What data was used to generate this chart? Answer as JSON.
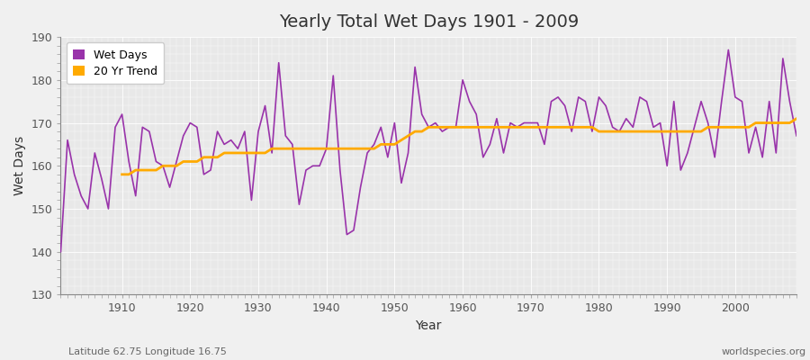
{
  "title": "Yearly Total Wet Days 1901 - 2009",
  "xlabel": "Year",
  "ylabel": "Wet Days",
  "footnote_left": "Latitude 62.75 Longitude 16.75",
  "footnote_right": "worldspecies.org",
  "ylim": [
    130,
    190
  ],
  "yticks": [
    130,
    140,
    150,
    160,
    170,
    180,
    190
  ],
  "fig_bg_color": "#f0f0f0",
  "plot_bg_color": "#e8e8e8",
  "wet_days_color": "#9933aa",
  "trend_color": "#ffaa00",
  "years": [
    1901,
    1902,
    1903,
    1904,
    1905,
    1906,
    1907,
    1908,
    1909,
    1910,
    1911,
    1912,
    1913,
    1914,
    1915,
    1916,
    1917,
    1918,
    1919,
    1920,
    1921,
    1922,
    1923,
    1924,
    1925,
    1926,
    1927,
    1928,
    1929,
    1930,
    1931,
    1932,
    1933,
    1934,
    1935,
    1936,
    1937,
    1938,
    1939,
    1940,
    1941,
    1942,
    1943,
    1944,
    1945,
    1946,
    1947,
    1948,
    1949,
    1950,
    1951,
    1952,
    1953,
    1954,
    1955,
    1956,
    1957,
    1958,
    1959,
    1960,
    1961,
    1962,
    1963,
    1964,
    1965,
    1966,
    1967,
    1968,
    1969,
    1970,
    1971,
    1972,
    1973,
    1974,
    1975,
    1976,
    1977,
    1978,
    1979,
    1980,
    1981,
    1982,
    1983,
    1984,
    1985,
    1986,
    1987,
    1988,
    1989,
    1990,
    1991,
    1992,
    1993,
    1994,
    1995,
    1996,
    1997,
    1998,
    1999,
    2000,
    2001,
    2002,
    2003,
    2004,
    2005,
    2006,
    2007,
    2008,
    2009
  ],
  "wet_days": [
    140,
    166,
    158,
    153,
    150,
    163,
    157,
    150,
    169,
    172,
    161,
    153,
    169,
    168,
    161,
    160,
    155,
    161,
    167,
    170,
    169,
    158,
    159,
    168,
    165,
    166,
    164,
    168,
    152,
    168,
    174,
    163,
    184,
    167,
    165,
    151,
    159,
    160,
    160,
    164,
    181,
    159,
    144,
    145,
    155,
    163,
    165,
    169,
    162,
    170,
    156,
    163,
    183,
    172,
    169,
    170,
    168,
    169,
    169,
    180,
    175,
    172,
    162,
    165,
    171,
    163,
    170,
    169,
    170,
    170,
    170,
    165,
    175,
    176,
    174,
    168,
    176,
    175,
    168,
    176,
    174,
    169,
    168,
    171,
    169,
    176,
    175,
    169,
    170,
    160,
    175,
    159,
    163,
    169,
    175,
    170,
    162,
    175,
    187,
    176,
    175,
    163,
    169,
    162,
    175,
    163,
    185,
    175,
    167
  ],
  "trend_years": [
    1910,
    1911,
    1912,
    1913,
    1914,
    1915,
    1916,
    1917,
    1918,
    1919,
    1920,
    1921,
    1922,
    1923,
    1924,
    1925,
    1926,
    1927,
    1928,
    1929,
    1930,
    1931,
    1932,
    1933,
    1934,
    1935,
    1936,
    1937,
    1938,
    1939,
    1940,
    1941,
    1942,
    1943,
    1944,
    1945,
    1946,
    1947,
    1948,
    1949,
    1950,
    1951,
    1952,
    1953,
    1954,
    1955,
    1956,
    1957,
    1958,
    1959,
    1960,
    1961,
    1962,
    1963,
    1964,
    1965,
    1966,
    1967,
    1968,
    1969,
    1970,
    1971,
    1972,
    1973,
    1974,
    1975,
    1976,
    1977,
    1978,
    1979,
    1980,
    1981,
    1982,
    1983,
    1984,
    1985,
    1986,
    1987,
    1988,
    1989,
    1990,
    1991,
    1992,
    1993,
    1994,
    1995,
    1996,
    1997,
    1998,
    1999,
    2000,
    2001,
    2002,
    2003,
    2004,
    2005,
    2006,
    2007,
    2008,
    2009
  ],
  "trend_values": [
    158,
    158,
    159,
    159,
    159,
    159,
    160,
    160,
    160,
    161,
    161,
    161,
    162,
    162,
    162,
    163,
    163,
    163,
    163,
    163,
    163,
    163,
    164,
    164,
    164,
    164,
    164,
    164,
    164,
    164,
    164,
    164,
    164,
    164,
    164,
    164,
    164,
    164,
    165,
    165,
    165,
    166,
    167,
    168,
    168,
    169,
    169,
    169,
    169,
    169,
    169,
    169,
    169,
    169,
    169,
    169,
    169,
    169,
    169,
    169,
    169,
    169,
    169,
    169,
    169,
    169,
    169,
    169,
    169,
    169,
    168,
    168,
    168,
    168,
    168,
    168,
    168,
    168,
    168,
    168,
    168,
    168,
    168,
    168,
    168,
    168,
    169,
    169,
    169,
    169,
    169,
    169,
    169,
    170,
    170,
    170,
    170,
    170,
    170,
    171
  ]
}
